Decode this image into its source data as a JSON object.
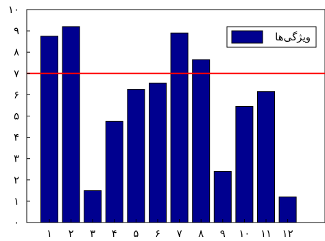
{
  "chart_data": {
    "type": "bar",
    "title": "",
    "xlabel": "",
    "ylabel": "",
    "categories": [
      "۱",
      "۲",
      "۳",
      "۴",
      "۵",
      "۶",
      "۷",
      "۸",
      "۹",
      "۱۰",
      "۱۱",
      "۱۲"
    ],
    "series": [
      {
        "name": "ویژگی‌ها",
        "values": [
          8.75,
          9.2,
          1.5,
          4.75,
          6.25,
          6.55,
          8.9,
          7.65,
          2.4,
          5.45,
          6.15,
          1.2
        ],
        "color": "#00008F"
      }
    ],
    "y_ticks": [
      "۰",
      "۱",
      "۲",
      "۳",
      "۴",
      "۵",
      "۶",
      "۷",
      "۸",
      "۹",
      "۱۰"
    ],
    "ylim": [
      0,
      10
    ],
    "reference_line": {
      "value": 7,
      "color": "#FF0000"
    },
    "legend": {
      "position": "top-right",
      "entries": [
        "ویژگی‌ها"
      ]
    },
    "grid": false
  }
}
